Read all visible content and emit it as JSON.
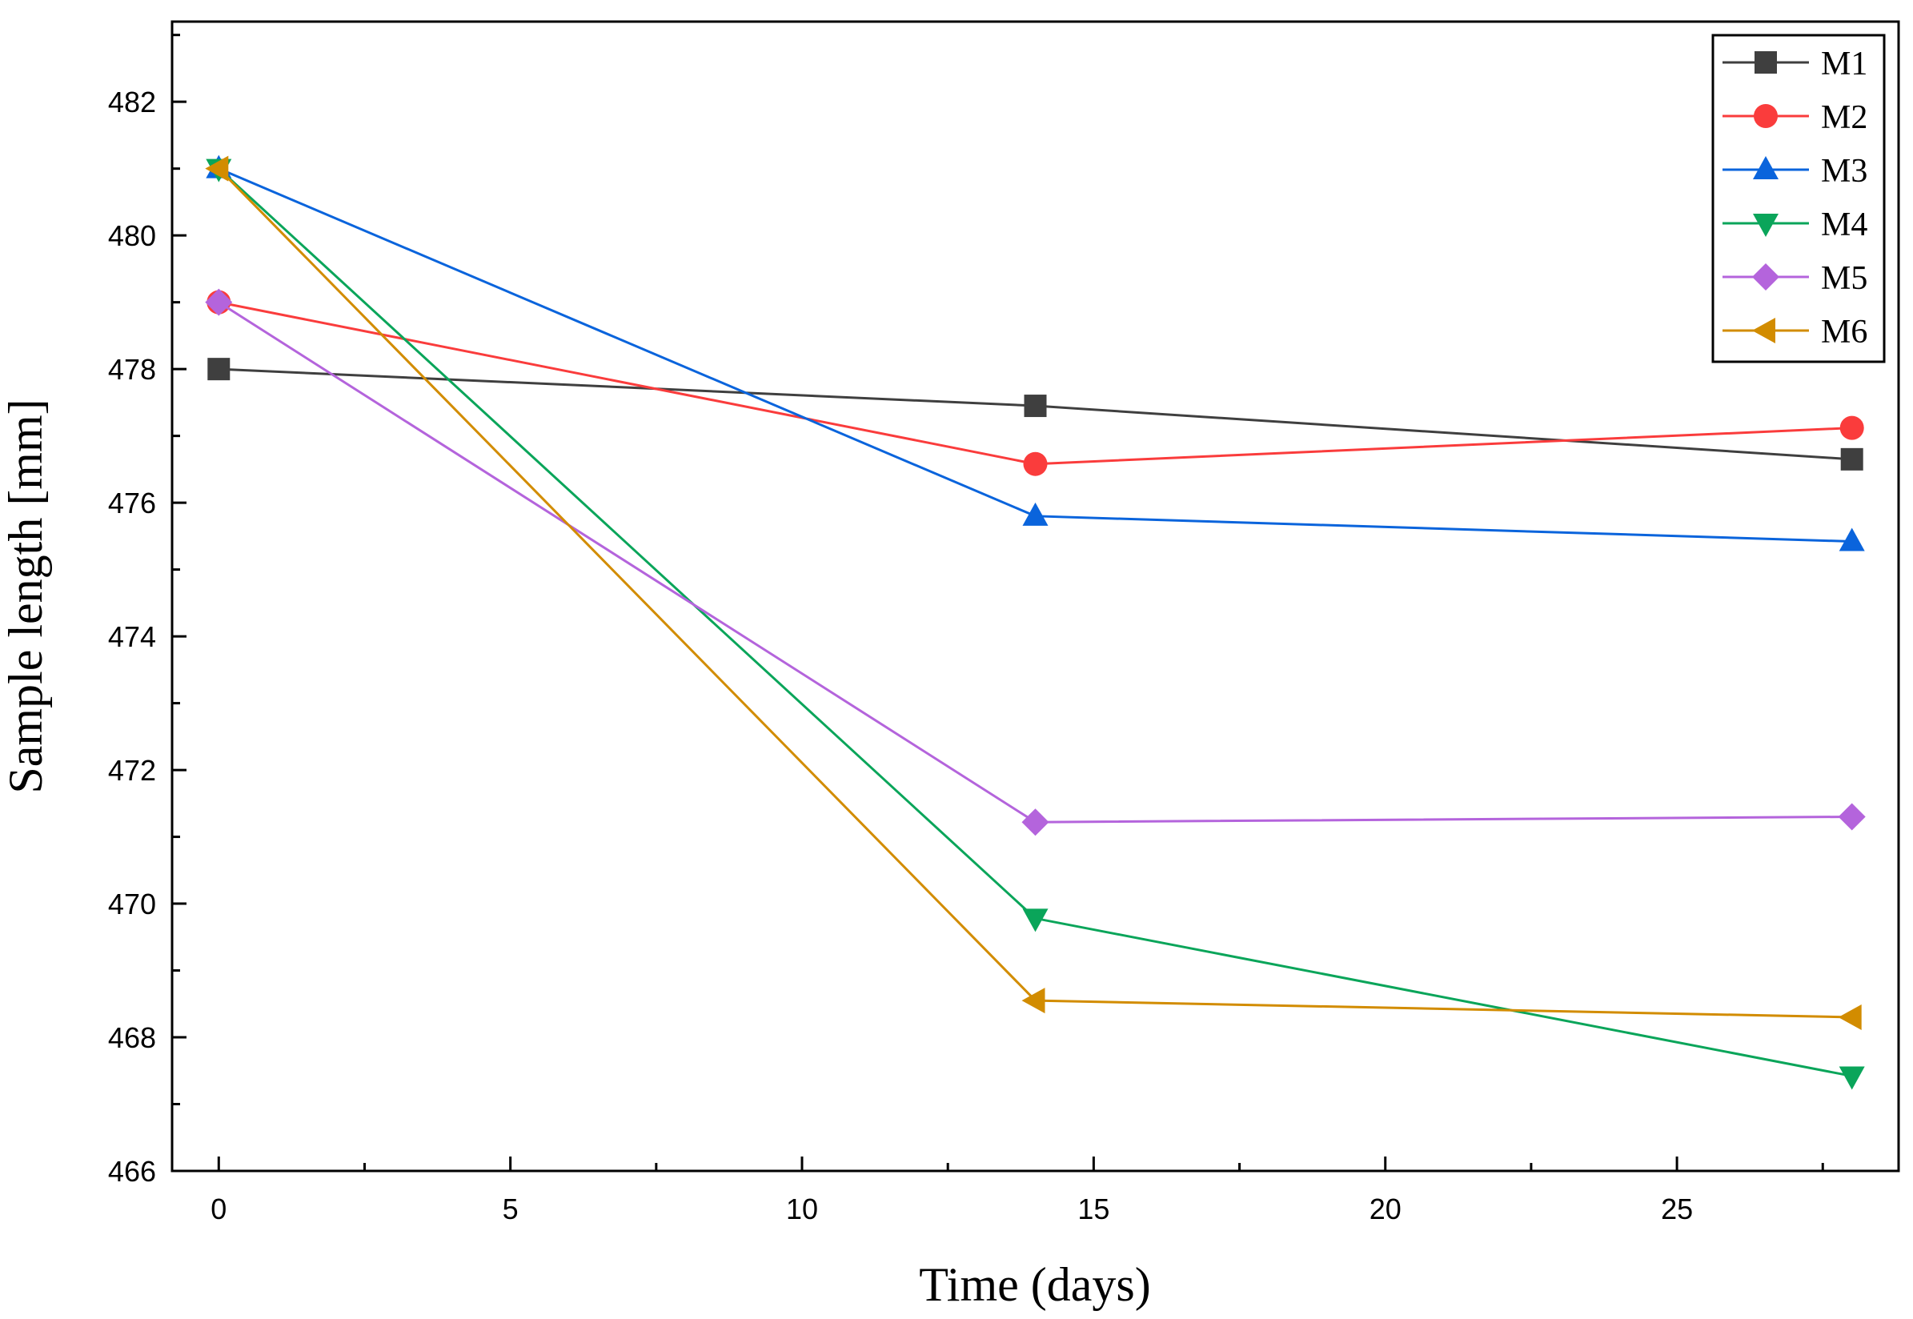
{
  "chart_data": {
    "type": "line",
    "title": "",
    "xlabel": "Time (days)",
    "ylabel": "Sample length [mm]",
    "xlim": [
      -0.8,
      28.8
    ],
    "ylim": [
      466,
      483.2
    ],
    "x_ticks": [
      0,
      5,
      10,
      15,
      20,
      25
    ],
    "x_tick_labels": [
      "0",
      "5",
      "10",
      "15",
      "20",
      "25"
    ],
    "y_ticks": [
      466,
      468,
      470,
      472,
      474,
      476,
      478,
      480,
      482
    ],
    "y_tick_labels": [
      "466",
      "468",
      "470",
      "472",
      "474",
      "476",
      "478",
      "480",
      "482"
    ],
    "grid": false,
    "legend_position": "top-right",
    "x": [
      0,
      14,
      28
    ],
    "series": [
      {
        "name": "M1",
        "values": [
          478.0,
          477.45,
          476.65
        ],
        "color": "#3f3f3f",
        "marker": "square"
      },
      {
        "name": "M2",
        "values": [
          479.0,
          476.58,
          477.12
        ],
        "color": "#fa3c3c",
        "marker": "circle"
      },
      {
        "name": "M3",
        "values": [
          481.0,
          475.8,
          475.42
        ],
        "color": "#0a64dc",
        "marker": "triangle-up"
      },
      {
        "name": "M4",
        "values": [
          481.0,
          469.78,
          467.42
        ],
        "color": "#0aa55a",
        "marker": "triangle-down"
      },
      {
        "name": "M5",
        "values": [
          479.0,
          471.22,
          471.3
        ],
        "color": "#b464dc",
        "marker": "diamond"
      },
      {
        "name": "M6",
        "values": [
          481.0,
          468.55,
          468.3
        ],
        "color": "#d28c00",
        "marker": "triangle-left"
      }
    ]
  }
}
